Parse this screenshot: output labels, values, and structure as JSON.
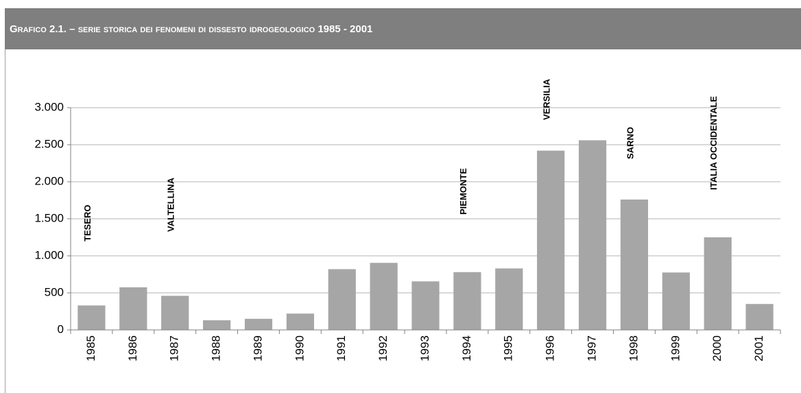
{
  "chart_data": {
    "type": "bar",
    "title": "Grafico 2.1. – serie storica dei fenomeni di dissesto idrogeologico 1985 - 2001",
    "categories": [
      "1985",
      "1986",
      "1987",
      "1988",
      "1989",
      "1990",
      "1991",
      "1992",
      "1993",
      "1994",
      "1995",
      "1996",
      "1997",
      "1998",
      "1999",
      "2000",
      "2001"
    ],
    "values": [
      330,
      575,
      460,
      130,
      150,
      220,
      820,
      905,
      655,
      780,
      830,
      2420,
      2560,
      1760,
      775,
      1250,
      350
    ],
    "color": "#a6a6a6",
    "ylim": [
      0,
      3000
    ],
    "yticks": [
      0,
      500,
      {
        "value": 1000,
        "label": "1.000"
      },
      {
        "value": 1500,
        "label": "1.500"
      },
      {
        "value": 2000,
        "label": "2.000"
      },
      {
        "value": 2500,
        "label": "2.500"
      },
      {
        "value": 3000,
        "label": "3.000"
      }
    ],
    "grid": true,
    "annotations": [
      {
        "text": "TESERO",
        "category": "1985"
      },
      {
        "text": "VALTELLINA",
        "category": "1987"
      },
      {
        "text": "PIEMONTE",
        "category": "1994"
      },
      {
        "text": "VERSILIA",
        "category": "1996"
      },
      {
        "text": "SARNO",
        "category": "1998"
      },
      {
        "text": "ITALIA OCCIDENTALE",
        "category": "2000"
      }
    ]
  }
}
